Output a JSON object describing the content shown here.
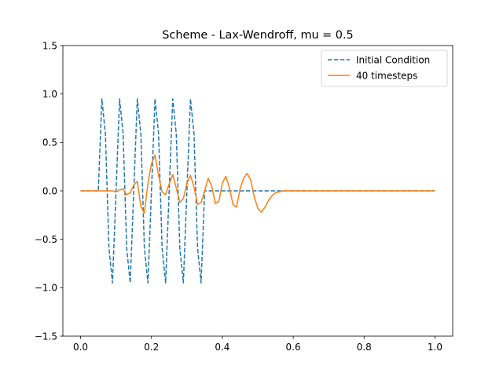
{
  "chart_data": {
    "type": "line",
    "title": "Scheme - Lax-Wendroff, mu = 0.5",
    "xlabel": "",
    "ylabel": "",
    "xlim": [
      -0.05,
      1.05
    ],
    "ylim": [
      -1.5,
      1.5
    ],
    "grid": false,
    "legend_position": "top-right",
    "x_ticks": [
      0.0,
      0.2,
      0.4,
      0.6,
      0.8,
      1.0
    ],
    "x_tick_labels": [
      "0.0",
      "0.2",
      "0.4",
      "0.6",
      "0.8",
      "1.0"
    ],
    "y_ticks": [
      -1.5,
      -1.0,
      -0.5,
      0.0,
      0.5,
      1.0,
      1.5
    ],
    "y_tick_labels": [
      "−1.5",
      "−1.0",
      "−0.5",
      "0.0",
      "0.5",
      "1.0",
      "1.5"
    ],
    "series": [
      {
        "name": "Initial Condition",
        "color": "#1f77b4",
        "style": "dashed",
        "x": [
          0.0,
          0.01,
          0.02,
          0.03,
          0.04,
          0.05,
          0.06,
          0.07,
          0.08,
          0.09,
          0.1,
          0.11,
          0.12,
          0.13,
          0.14,
          0.15,
          0.16,
          0.17,
          0.18,
          0.19,
          0.2,
          0.21,
          0.22,
          0.23,
          0.24,
          0.25,
          0.26,
          0.27,
          0.28,
          0.29,
          0.3,
          0.31,
          0.32,
          0.33,
          0.34,
          0.35,
          0.36,
          0.37,
          0.38,
          0.39,
          0.4,
          0.41,
          0.42,
          0.43,
          0.44,
          0.45,
          0.46,
          0.47,
          0.48,
          0.49,
          0.5,
          0.51,
          0.52,
          0.53,
          0.54,
          0.55,
          0.56,
          0.57,
          0.58,
          0.59,
          0.6,
          0.61,
          0.62,
          0.63,
          0.64,
          0.65,
          0.66,
          0.67,
          0.68,
          0.69,
          0.7,
          0.71,
          0.72,
          0.73,
          0.74,
          0.75,
          0.76,
          0.77,
          0.78,
          0.79,
          0.8,
          0.81,
          0.82,
          0.83,
          0.84,
          0.85,
          0.86,
          0.87,
          0.88,
          0.89,
          0.9,
          0.91,
          0.92,
          0.93,
          0.94,
          0.95,
          0.96,
          0.97,
          0.98,
          0.99,
          1.0
        ],
        "y": [
          0,
          0,
          0,
          0,
          0,
          0,
          0.95,
          0.59,
          -0.59,
          -0.95,
          0,
          0.95,
          0.59,
          -0.59,
          -0.95,
          0,
          0.95,
          0.59,
          -0.59,
          -0.95,
          0,
          0.95,
          0.59,
          -0.59,
          -0.95,
          0,
          0.95,
          0.59,
          -0.59,
          -0.95,
          0,
          0.95,
          0.59,
          -0.59,
          -0.95,
          0,
          0,
          0,
          0,
          0,
          0,
          0,
          0,
          0,
          0,
          0,
          0,
          0,
          0,
          0,
          0,
          0,
          0,
          0,
          0,
          0,
          0,
          0,
          0,
          0,
          0,
          0,
          0,
          0,
          0,
          0,
          0,
          0,
          0,
          0,
          0,
          0,
          0,
          0,
          0,
          0,
          0,
          0,
          0,
          0,
          0,
          0,
          0,
          0,
          0,
          0,
          0,
          0,
          0,
          0,
          0,
          0,
          0,
          0,
          0,
          0,
          0,
          0,
          0,
          0,
          0
        ]
      },
      {
        "name": "40 timesteps",
        "color": "#ff7f0e",
        "style": "solid",
        "x": [
          0.0,
          0.01,
          0.02,
          0.03,
          0.04,
          0.05,
          0.06,
          0.07,
          0.08,
          0.09,
          0.1,
          0.11,
          0.12,
          0.13,
          0.14,
          0.15,
          0.16,
          0.17,
          0.18,
          0.19,
          0.2,
          0.21,
          0.22,
          0.23,
          0.24,
          0.25,
          0.26,
          0.27,
          0.28,
          0.29,
          0.3,
          0.31,
          0.32,
          0.33,
          0.34,
          0.35,
          0.36,
          0.37,
          0.38,
          0.39,
          0.4,
          0.41,
          0.42,
          0.43,
          0.44,
          0.45,
          0.46,
          0.47,
          0.48,
          0.49,
          0.5,
          0.51,
          0.52,
          0.53,
          0.54,
          0.55,
          0.56,
          0.57,
          0.58,
          0.59,
          0.6,
          0.61,
          0.62,
          0.63,
          0.64,
          0.65,
          0.66,
          0.67,
          0.68,
          0.69,
          0.7,
          0.71,
          0.72,
          0.73,
          0.74,
          0.75,
          0.76,
          0.77,
          0.78,
          0.79,
          0.8,
          0.81,
          0.82,
          0.83,
          0.84,
          0.85,
          0.86,
          0.87,
          0.88,
          0.89,
          0.9,
          0.91,
          0.92,
          0.93,
          0.94,
          0.95,
          0.96,
          0.97,
          0.98,
          0.99,
          1.0
        ],
        "y": [
          0,
          0,
          0,
          0,
          0,
          0,
          0,
          0,
          0,
          0,
          -0.01,
          0.01,
          0.02,
          -0.04,
          -0.02,
          0.06,
          0.1,
          -0.16,
          -0.23,
          0.08,
          0.28,
          0.37,
          0.16,
          -0.01,
          -0.04,
          0.07,
          0.17,
          0.03,
          -0.12,
          -0.08,
          0.08,
          0.16,
          0.04,
          -0.14,
          -0.12,
          0.0,
          0.13,
          0.05,
          -0.13,
          -0.11,
          0.08,
          0.15,
          0.03,
          -0.14,
          -0.17,
          0.02,
          0.13,
          0.18,
          0.11,
          -0.06,
          -0.18,
          -0.22,
          -0.17,
          -0.1,
          -0.05,
          -0.02,
          -0.01,
          0,
          0,
          0,
          0,
          0,
          0,
          0,
          0,
          0,
          0,
          0,
          0,
          0,
          0,
          0,
          0,
          0,
          0,
          0,
          0,
          0,
          0,
          0,
          0,
          0,
          0,
          0,
          0,
          0,
          0,
          0,
          0,
          0,
          0,
          0,
          0,
          0,
          0,
          0,
          0,
          0,
          0,
          0,
          0
        ]
      }
    ]
  }
}
